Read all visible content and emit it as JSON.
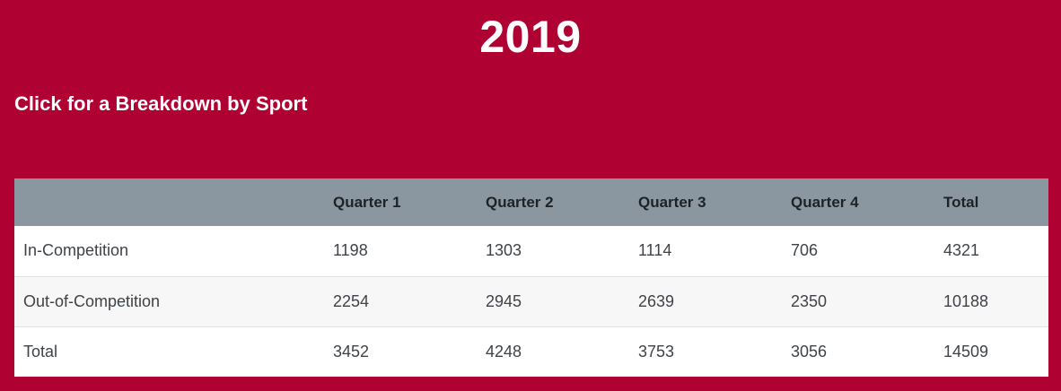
{
  "page": {
    "background_color": "#AF0232",
    "title": "2019",
    "breakdown_link_label": "Click for a Breakdown by Sport"
  },
  "table": {
    "header_bg_color": "#8A97A0",
    "alt_row_bg_color": "#f7f7f8",
    "headers": [
      "",
      "Quarter 1",
      "Quarter 2",
      "Quarter 3",
      "Quarter 4",
      "Total"
    ],
    "rows": [
      {
        "label": "In-Competition",
        "values": [
          "1198",
          "1303",
          "1114",
          "706",
          "4321"
        ]
      },
      {
        "label": "Out-of-Competition",
        "values": [
          "2254",
          "2945",
          "2639",
          "2350",
          "10188"
        ]
      },
      {
        "label": "Total",
        "values": [
          "3452",
          "4248",
          "3753",
          "3056",
          "14509"
        ]
      }
    ]
  },
  "chart_data": {
    "type": "table",
    "title": "2019",
    "columns": [
      "",
      "Quarter 1",
      "Quarter 2",
      "Quarter 3",
      "Quarter 4",
      "Total"
    ],
    "rows": [
      [
        "In-Competition",
        1198,
        1303,
        1114,
        706,
        4321
      ],
      [
        "Out-of-Competition",
        2254,
        2945,
        2639,
        2350,
        10188
      ],
      [
        "Total",
        3452,
        4248,
        3753,
        3056,
        14509
      ]
    ]
  }
}
